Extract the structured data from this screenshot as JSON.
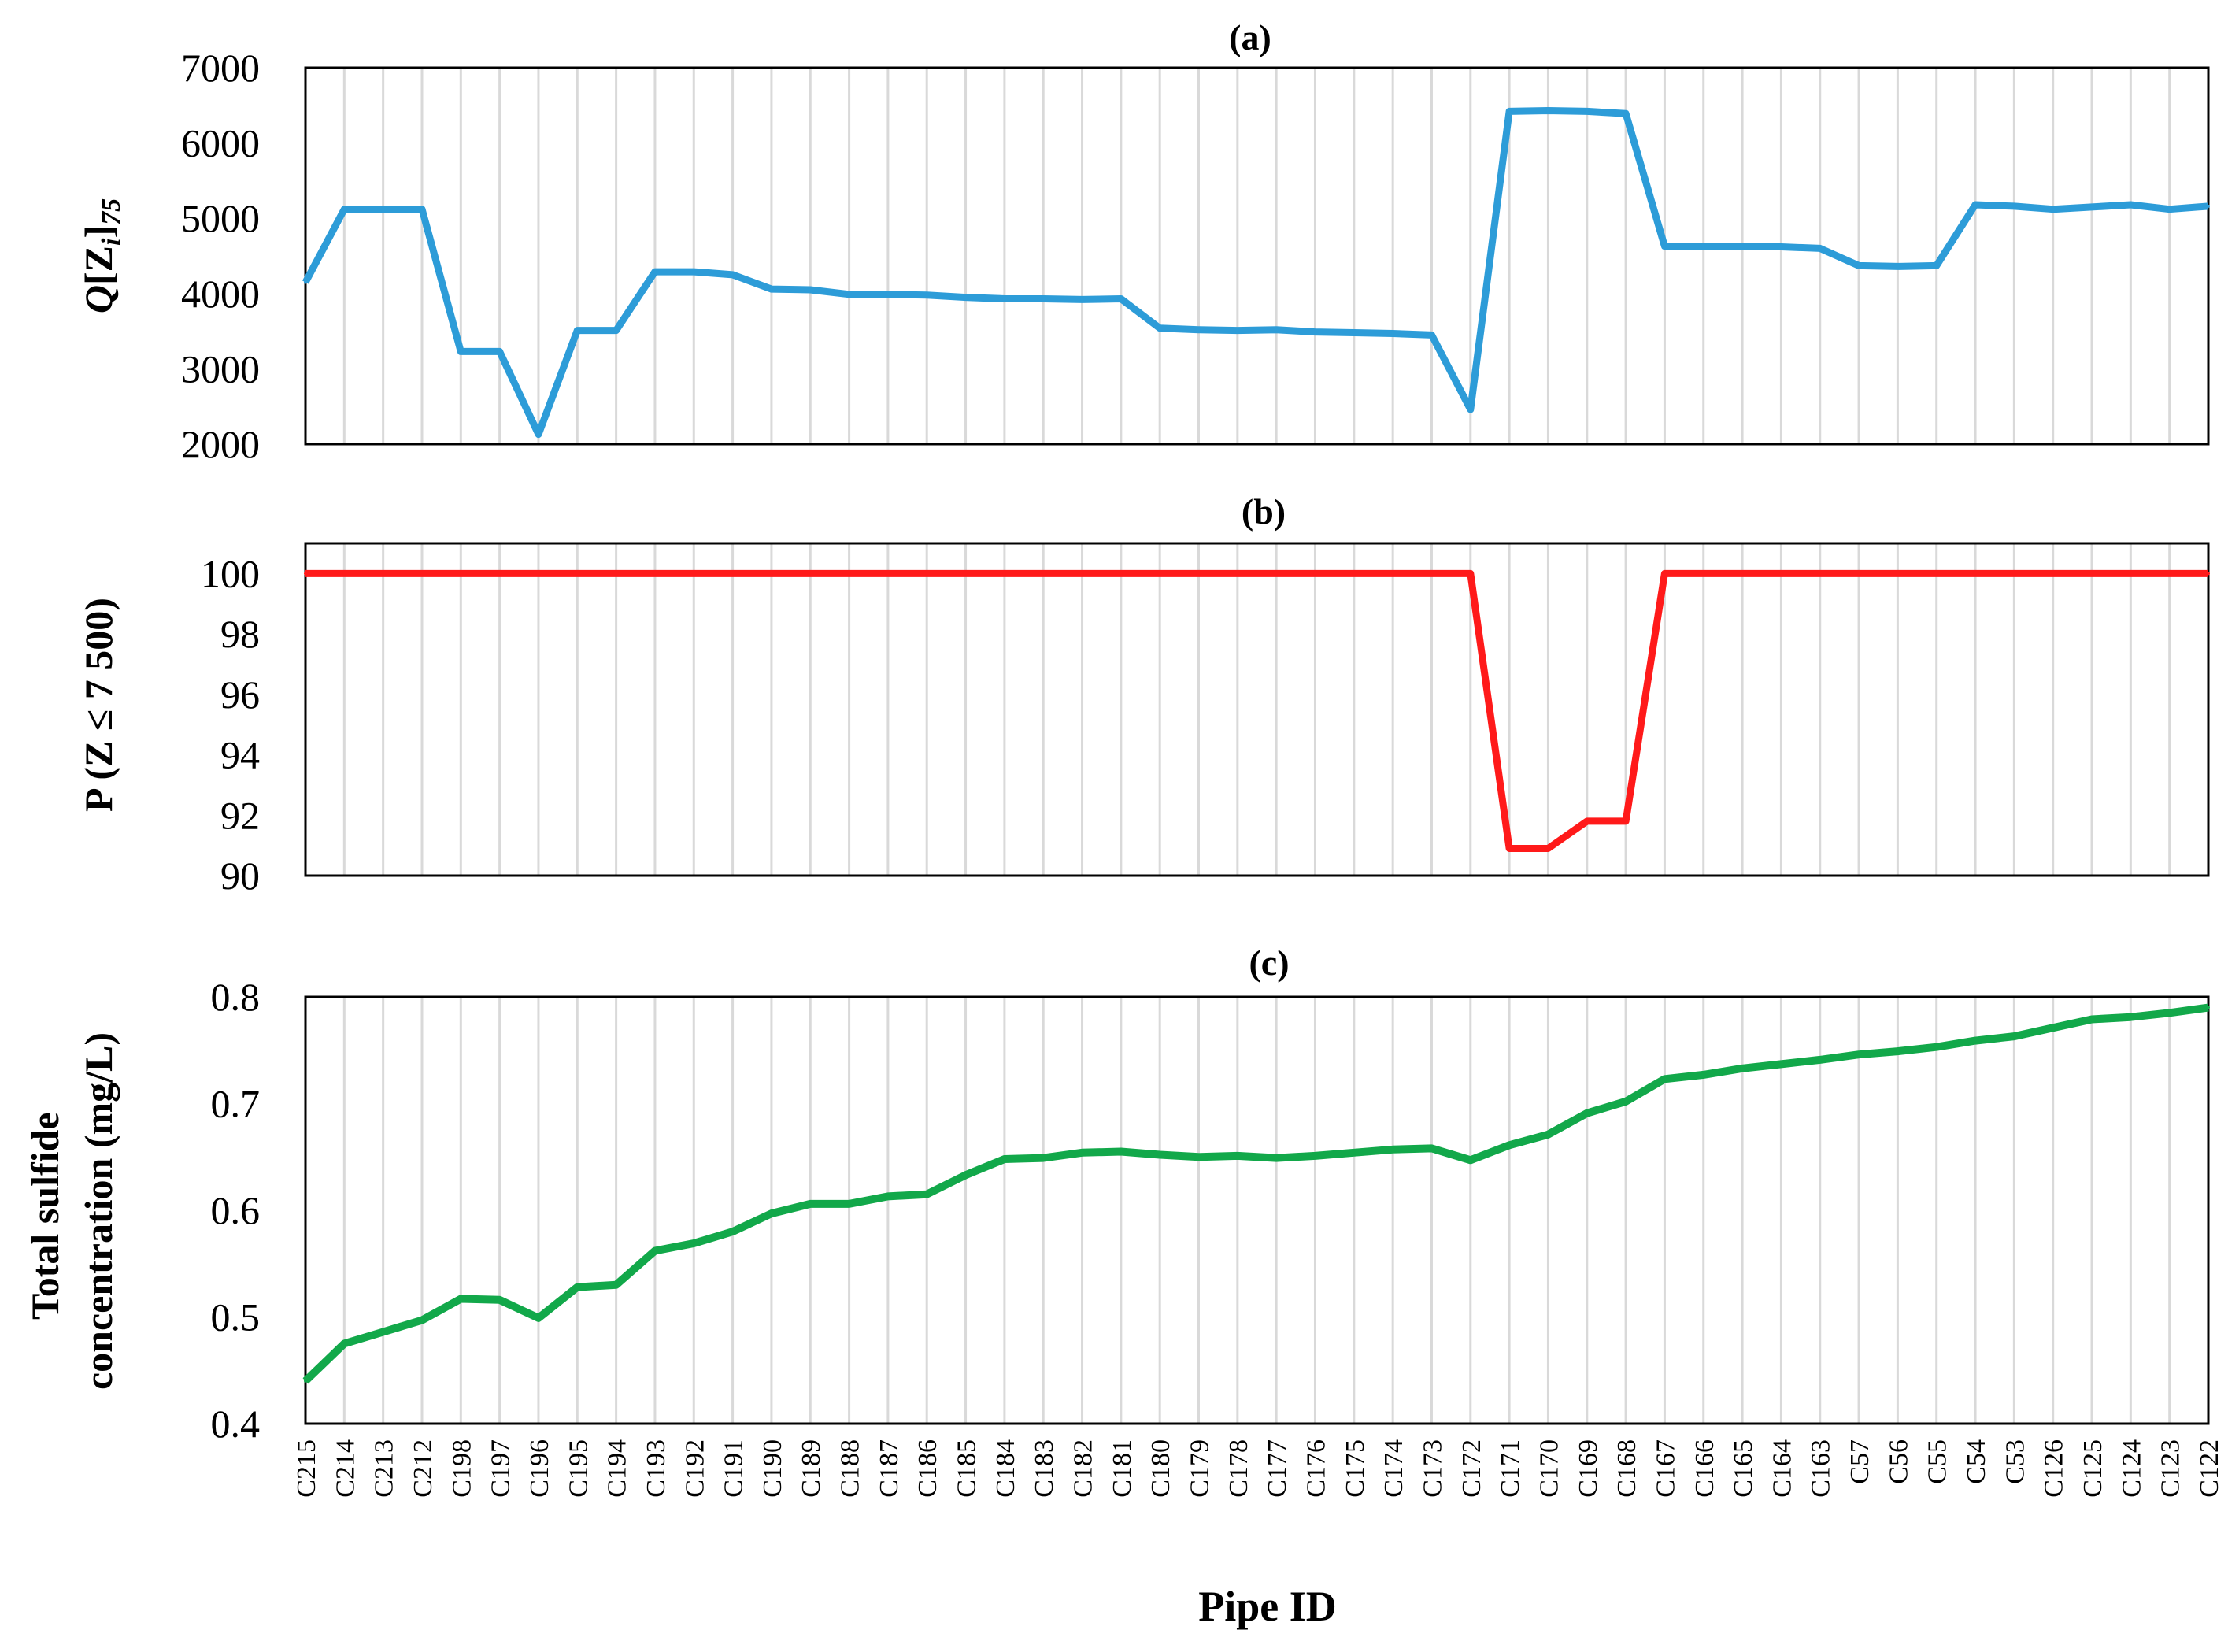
{
  "chart_data": [
    {
      "type": "line",
      "title": "(a)",
      "ylabel": "Q[Z_i]_75",
      "ylabel_parts": {
        "q": "Q",
        "bracket_open": "[Z",
        "sub_i": "i",
        "bracket_close": "]",
        "sub_75": "75"
      },
      "ylim": [
        2000,
        7000
      ],
      "yticks": [
        "2000",
        "3000",
        "4000",
        "5000",
        "6000",
        "7000"
      ],
      "ytick_values": [
        2000,
        3000,
        4000,
        5000,
        6000,
        7000
      ],
      "grid": "vertical",
      "color": "#2d9cd8",
      "categories": [
        "C215",
        "C214",
        "C213",
        "C212",
        "C198",
        "C197",
        "C196",
        "C195",
        "C194",
        "C193",
        "C192",
        "C191",
        "C190",
        "C189",
        "C188",
        "C187",
        "C186",
        "C185",
        "C184",
        "C183",
        "C182",
        "C181",
        "C180",
        "C179",
        "C178",
        "C177",
        "C176",
        "C175",
        "C174",
        "C173",
        "C172",
        "C171",
        "C170",
        "C169",
        "C168",
        "C167",
        "C166",
        "C165",
        "C164",
        "C163",
        "C57",
        "C56",
        "C55",
        "C54",
        "C53",
        "C126",
        "C125",
        "C124",
        "C123",
        "C122"
      ],
      "values": [
        4150,
        5120,
        5120,
        5120,
        3230,
        3230,
        2130,
        3510,
        3510,
        4290,
        4290,
        4250,
        4060,
        4050,
        3990,
        3990,
        3980,
        3950,
        3930,
        3930,
        3920,
        3930,
        3540,
        3520,
        3510,
        3520,
        3490,
        3480,
        3470,
        3450,
        2460,
        6420,
        6430,
        6420,
        6390,
        4630,
        4630,
        4620,
        4620,
        4600,
        4370,
        4360,
        4370,
        5180,
        5160,
        5120,
        5150,
        5180,
        5120,
        5160
      ]
    },
    {
      "type": "line",
      "title": "(b)",
      "ylabel": "P (Z ≤ 7 500)",
      "ylim": [
        90,
        101
      ],
      "yticks": [
        "90",
        "92",
        "94",
        "96",
        "98",
        "100"
      ],
      "ytick_values": [
        90,
        92,
        94,
        96,
        98,
        100
      ],
      "grid": "vertical",
      "color": "#ff1a1a",
      "categories_ref": "same as (a)",
      "values": [
        100,
        100,
        100,
        100,
        100,
        100,
        100,
        100,
        100,
        100,
        100,
        100,
        100,
        100,
        100,
        100,
        100,
        100,
        100,
        100,
        100,
        100,
        100,
        100,
        100,
        100,
        100,
        100,
        100,
        100,
        100,
        90.9,
        90.9,
        91.8,
        91.8,
        100,
        100,
        100,
        100,
        100,
        100,
        100,
        100,
        100,
        100,
        100,
        100,
        100,
        100,
        100
      ]
    },
    {
      "type": "line",
      "title": "(c)",
      "ylabel": "Total sulfide concentration (mg/L)",
      "ylabel_lines": [
        "Total sulfide",
        "concentration (mg/L)"
      ],
      "xlabel": "Pipe ID",
      "ylim": [
        0.4,
        0.8
      ],
      "yticks": [
        "0.4",
        "0.5",
        "0.6",
        "0.7",
        "0.8"
      ],
      "ytick_values": [
        0.4,
        0.5,
        0.6,
        0.7,
        0.8
      ],
      "grid": "vertical",
      "color": "#12a84a",
      "categories_ref": "same as (a)",
      "values": [
        0.44,
        0.475,
        0.486,
        0.497,
        0.517,
        0.516,
        0.499,
        0.528,
        0.53,
        0.562,
        0.569,
        0.58,
        0.597,
        0.606,
        0.606,
        0.613,
        0.615,
        0.633,
        0.648,
        0.649,
        0.654,
        0.655,
        0.652,
        0.65,
        0.651,
        0.649,
        0.651,
        0.654,
        0.657,
        0.658,
        0.647,
        0.661,
        0.671,
        0.691,
        0.702,
        0.723,
        0.727,
        0.733,
        0.737,
        0.741,
        0.746,
        0.749,
        0.753,
        0.759,
        0.763,
        0.771,
        0.779,
        0.781,
        0.785,
        0.79
      ]
    }
  ]
}
